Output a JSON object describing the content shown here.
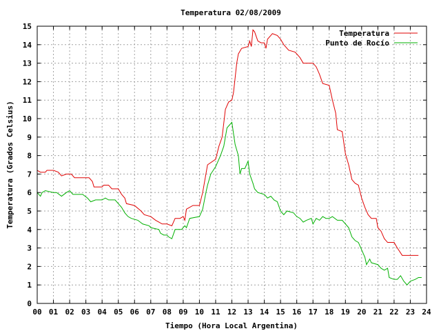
{
  "chart_data": {
    "type": "line",
    "title": "Temperatura 02/08/2009",
    "xlabel": "Tiempo (Hora Local Argentina)",
    "ylabel": "Temperatura (Grados Celsius)",
    "xlim": [
      0,
      24
    ],
    "ylim": [
      0,
      15
    ],
    "x_ticks": [
      "00",
      "01",
      "02",
      "03",
      "04",
      "05",
      "06",
      "07",
      "08",
      "09",
      "10",
      "11",
      "12",
      "13",
      "14",
      "15",
      "16",
      "17",
      "18",
      "19",
      "20",
      "21",
      "22",
      "23",
      "24"
    ],
    "y_ticks": [
      "0",
      "1",
      "2",
      "3",
      "4",
      "5",
      "6",
      "7",
      "8",
      "9",
      "10",
      "11",
      "12",
      "13",
      "14",
      "15"
    ],
    "grid": true,
    "legend_position": "top-right",
    "series": [
      {
        "name": "Temperatura",
        "color": "#e00000",
        "points": [
          [
            0.0,
            7.2
          ],
          [
            0.2,
            7.1
          ],
          [
            0.5,
            7.1
          ],
          [
            0.6,
            7.2
          ],
          [
            1.0,
            7.2
          ],
          [
            1.3,
            7.1
          ],
          [
            1.5,
            6.9
          ],
          [
            1.8,
            7.0
          ],
          [
            2.1,
            7.0
          ],
          [
            2.3,
            6.8
          ],
          [
            2.8,
            6.8
          ],
          [
            3.2,
            6.8
          ],
          [
            3.4,
            6.6
          ],
          [
            3.5,
            6.3
          ],
          [
            4.0,
            6.3
          ],
          [
            4.1,
            6.4
          ],
          [
            4.4,
            6.4
          ],
          [
            4.6,
            6.2
          ],
          [
            5.0,
            6.2
          ],
          [
            5.2,
            5.9
          ],
          [
            5.4,
            5.7
          ],
          [
            5.5,
            5.4
          ],
          [
            6.0,
            5.3
          ],
          [
            6.4,
            5.0
          ],
          [
            6.6,
            4.8
          ],
          [
            7.0,
            4.7
          ],
          [
            7.3,
            4.5
          ],
          [
            7.5,
            4.4
          ],
          [
            7.7,
            4.3
          ],
          [
            8.0,
            4.3
          ],
          [
            8.3,
            4.2
          ],
          [
            8.5,
            4.6
          ],
          [
            8.8,
            4.6
          ],
          [
            9.0,
            4.7
          ],
          [
            9.1,
            4.5
          ],
          [
            9.2,
            5.1
          ],
          [
            9.6,
            5.3
          ],
          [
            10.0,
            5.3
          ],
          [
            10.2,
            6.0
          ],
          [
            10.4,
            7.0
          ],
          [
            10.5,
            7.5
          ],
          [
            11.0,
            7.8
          ],
          [
            11.2,
            8.5
          ],
          [
            11.4,
            9.0
          ],
          [
            11.6,
            10.5
          ],
          [
            11.8,
            10.9
          ],
          [
            12.0,
            11.0
          ],
          [
            12.1,
            11.4
          ],
          [
            12.2,
            12.2
          ],
          [
            12.3,
            13.0
          ],
          [
            12.4,
            13.5
          ],
          [
            12.6,
            13.8
          ],
          [
            13.0,
            13.9
          ],
          [
            13.1,
            14.2
          ],
          [
            13.2,
            13.9
          ],
          [
            13.3,
            14.8
          ],
          [
            13.4,
            14.7
          ],
          [
            13.6,
            14.2
          ],
          [
            13.8,
            14.1
          ],
          [
            14.0,
            14.1
          ],
          [
            14.1,
            13.8
          ],
          [
            14.2,
            14.3
          ],
          [
            14.4,
            14.5
          ],
          [
            14.5,
            14.6
          ],
          [
            14.8,
            14.5
          ],
          [
            15.0,
            14.3
          ],
          [
            15.2,
            14.0
          ],
          [
            15.5,
            13.7
          ],
          [
            15.9,
            13.6
          ],
          [
            16.2,
            13.3
          ],
          [
            16.4,
            13.0
          ],
          [
            17.0,
            13.0
          ],
          [
            17.2,
            12.8
          ],
          [
            17.4,
            12.4
          ],
          [
            17.6,
            11.9
          ],
          [
            18.0,
            11.8
          ],
          [
            18.2,
            11.0
          ],
          [
            18.4,
            10.3
          ],
          [
            18.5,
            9.4
          ],
          [
            18.8,
            9.3
          ],
          [
            19.0,
            8.1
          ],
          [
            19.2,
            7.5
          ],
          [
            19.4,
            6.7
          ],
          [
            19.6,
            6.5
          ],
          [
            19.8,
            6.4
          ],
          [
            20.0,
            5.7
          ],
          [
            20.2,
            5.2
          ],
          [
            20.4,
            4.8
          ],
          [
            20.6,
            4.6
          ],
          [
            20.9,
            4.6
          ],
          [
            21.0,
            4.1
          ],
          [
            21.2,
            3.9
          ],
          [
            21.4,
            3.5
          ],
          [
            21.6,
            3.3
          ],
          [
            22.0,
            3.3
          ],
          [
            22.2,
            3.0
          ],
          [
            22.5,
            2.6
          ],
          [
            23.0,
            2.6
          ],
          [
            23.5,
            2.6
          ]
        ]
      },
      {
        "name": "Punto de Rocío",
        "color": "#00b000",
        "points": [
          [
            0.0,
            6.0
          ],
          [
            0.2,
            5.8
          ],
          [
            0.3,
            6.0
          ],
          [
            0.5,
            6.1
          ],
          [
            1.0,
            6.0
          ],
          [
            1.2,
            6.0
          ],
          [
            1.5,
            5.8
          ],
          [
            1.8,
            6.0
          ],
          [
            2.0,
            6.1
          ],
          [
            2.2,
            5.9
          ],
          [
            2.6,
            5.9
          ],
          [
            2.8,
            5.9
          ],
          [
            3.1,
            5.7
          ],
          [
            3.3,
            5.5
          ],
          [
            3.6,
            5.6
          ],
          [
            4.0,
            5.6
          ],
          [
            4.2,
            5.7
          ],
          [
            4.4,
            5.6
          ],
          [
            4.8,
            5.6
          ],
          [
            5.0,
            5.4
          ],
          [
            5.2,
            5.2
          ],
          [
            5.4,
            4.9
          ],
          [
            5.6,
            4.7
          ],
          [
            5.8,
            4.6
          ],
          [
            6.2,
            4.5
          ],
          [
            6.5,
            4.3
          ],
          [
            6.9,
            4.2
          ],
          [
            7.0,
            4.1
          ],
          [
            7.5,
            4.0
          ],
          [
            7.6,
            3.8
          ],
          [
            7.8,
            3.7
          ],
          [
            8.0,
            3.7
          ],
          [
            8.1,
            3.6
          ],
          [
            8.3,
            3.5
          ],
          [
            8.5,
            4.0
          ],
          [
            8.9,
            4.0
          ],
          [
            9.1,
            4.2
          ],
          [
            9.2,
            4.1
          ],
          [
            9.4,
            4.6
          ],
          [
            10.0,
            4.7
          ],
          [
            10.2,
            5.1
          ],
          [
            10.4,
            6.0
          ],
          [
            10.5,
            6.4
          ],
          [
            10.7,
            7.0
          ],
          [
            11.0,
            7.4
          ],
          [
            11.3,
            8.0
          ],
          [
            11.5,
            8.5
          ],
          [
            11.7,
            9.5
          ],
          [
            12.0,
            9.8
          ],
          [
            12.2,
            8.6
          ],
          [
            12.4,
            8.0
          ],
          [
            12.5,
            7.0
          ],
          [
            12.6,
            7.3
          ],
          [
            12.8,
            7.3
          ],
          [
            13.0,
            7.7
          ],
          [
            13.1,
            7.0
          ],
          [
            13.3,
            6.5
          ],
          [
            13.4,
            6.2
          ],
          [
            13.6,
            6.0
          ],
          [
            14.0,
            5.9
          ],
          [
            14.2,
            5.7
          ],
          [
            14.4,
            5.8
          ],
          [
            14.6,
            5.6
          ],
          [
            14.8,
            5.5
          ],
          [
            15.0,
            5.0
          ],
          [
            15.2,
            4.8
          ],
          [
            15.4,
            5.0
          ],
          [
            15.8,
            4.9
          ],
          [
            16.0,
            4.7
          ],
          [
            16.2,
            4.6
          ],
          [
            16.4,
            4.4
          ],
          [
            16.6,
            4.5
          ],
          [
            16.9,
            4.6
          ],
          [
            17.0,
            4.3
          ],
          [
            17.2,
            4.6
          ],
          [
            17.4,
            4.5
          ],
          [
            17.6,
            4.7
          ],
          [
            17.8,
            4.6
          ],
          [
            18.0,
            4.6
          ],
          [
            18.2,
            4.7
          ],
          [
            18.5,
            4.5
          ],
          [
            18.8,
            4.5
          ],
          [
            19.0,
            4.3
          ],
          [
            19.2,
            4.1
          ],
          [
            19.4,
            3.6
          ],
          [
            19.6,
            3.4
          ],
          [
            19.8,
            3.3
          ],
          [
            20.0,
            2.9
          ],
          [
            20.2,
            2.5
          ],
          [
            20.3,
            2.1
          ],
          [
            20.5,
            2.4
          ],
          [
            20.6,
            2.2
          ],
          [
            21.0,
            2.1
          ],
          [
            21.2,
            1.9
          ],
          [
            21.4,
            1.8
          ],
          [
            21.6,
            1.9
          ],
          [
            21.7,
            1.4
          ],
          [
            22.0,
            1.3
          ],
          [
            22.2,
            1.3
          ],
          [
            22.4,
            1.5
          ],
          [
            22.6,
            1.2
          ],
          [
            22.8,
            1.0
          ],
          [
            23.0,
            1.2
          ],
          [
            23.3,
            1.3
          ],
          [
            23.5,
            1.4
          ],
          [
            23.7,
            1.4
          ]
        ]
      }
    ]
  }
}
